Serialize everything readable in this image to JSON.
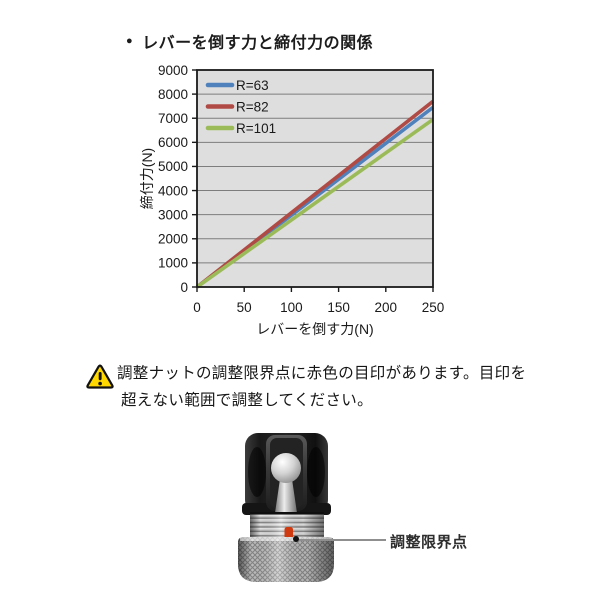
{
  "section_title": {
    "bullet": "●",
    "text": "レバーを倒す力と締付力の関係"
  },
  "chart_data": {
    "type": "line",
    "title": "レバーを倒す力と締付力の関係",
    "xlabel": "レバーを倒す力(N)",
    "ylabel": "締付力(N)",
    "xlim": [
      0,
      250
    ],
    "ylim": [
      0,
      9000
    ],
    "x_ticks": [
      0,
      50,
      100,
      150,
      200,
      250
    ],
    "y_ticks": [
      0,
      1000,
      2000,
      3000,
      4000,
      5000,
      6000,
      7000,
      8000,
      9000
    ],
    "grid": "horizontal",
    "legend_position": "top-left-inside",
    "plot_bg": "#dedede",
    "grid_color": "#7d7d7d",
    "border_color": "#1a1a1a",
    "series": [
      {
        "name": "R=63",
        "color": "#4f81bd",
        "x": [
          0,
          250
        ],
        "y": [
          0,
          7450
        ]
      },
      {
        "name": "R=82",
        "color": "#b04a45",
        "x": [
          0,
          250
        ],
        "y": [
          0,
          7700
        ]
      },
      {
        "name": "R=101",
        "color": "#9bbb59",
        "x": [
          0,
          250
        ],
        "y": [
          0,
          6950
        ]
      }
    ]
  },
  "warning": {
    "icon": "warning-triangle-icon",
    "icon_color": "#ffd800",
    "lines": [
      "調整ナットの調整限界点に赤色の目印があります。目印を",
      "超えない範囲で調整してください。"
    ]
  },
  "figure": {
    "label": "調整限界点",
    "mark_color": "#cf3a10"
  }
}
